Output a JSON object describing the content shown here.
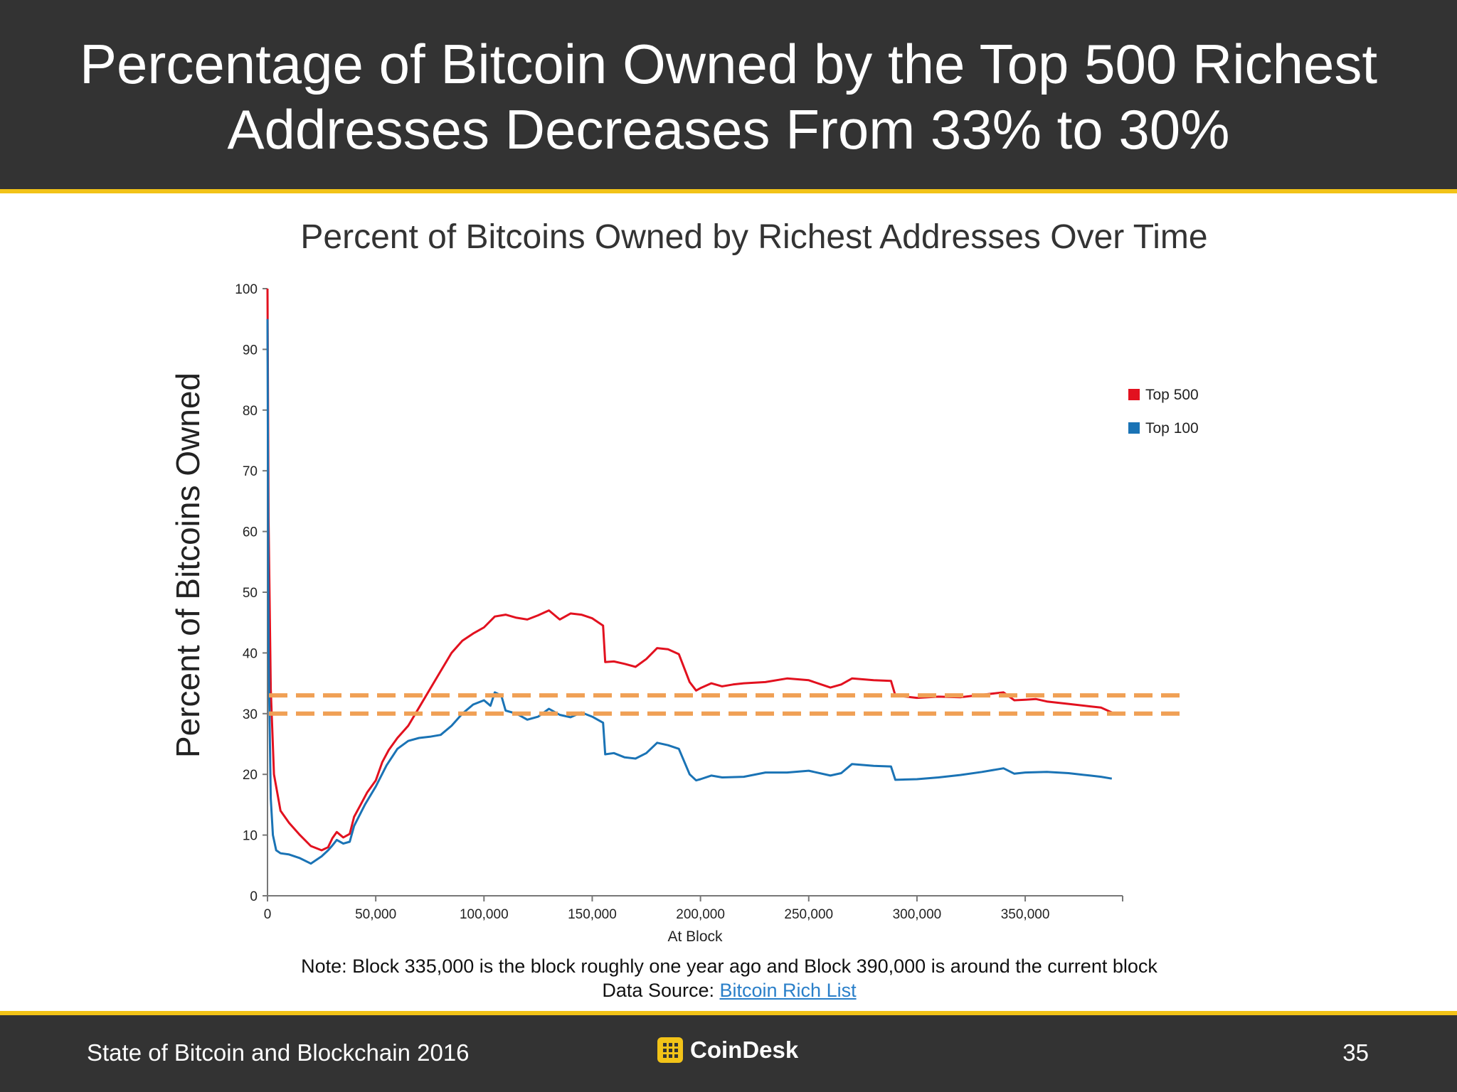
{
  "slide": {
    "title_line1": "Percentage of Bitcoin Owned by the Top 500 Richest",
    "title_line2": "Addresses Decreases From 33% to 30%",
    "note": "Note: Block 335,000 is the block roughly one year ago and Block 390,000 is around the current block",
    "source_label": "Data Source:",
    "source_link": "Bitcoin Rich List",
    "footer_left": "State of Bitcoin and Blockchain 2016",
    "footer_brand": "CoinDesk",
    "page_number": "35",
    "colors": {
      "header": "#333333",
      "accent": "#f2c318",
      "link": "#2a7fc9"
    }
  },
  "chart_data": {
    "type": "line",
    "title": "Percent of Bitcoins Owned by Richest Addresses Over Time",
    "xlabel": "At Block",
    "ylabel": "Percent of Bitcoins Owned",
    "xlim": [
      0,
      395000
    ],
    "ylim": [
      0,
      100
    ],
    "x_ticks": [
      0,
      50000,
      100000,
      150000,
      200000,
      250000,
      300000,
      350000
    ],
    "x_tick_labels": [
      "0",
      "50,000",
      "100,000",
      "150,000",
      "200,000",
      "250,000",
      "300,000",
      "350,000"
    ],
    "y_ticks": [
      0,
      10,
      20,
      30,
      40,
      50,
      60,
      70,
      80,
      90,
      100
    ],
    "grid": false,
    "legend_position": "top-right",
    "series": [
      {
        "name": "Top 500",
        "color": "#e2111f",
        "points": [
          [
            0,
            100
          ],
          [
            500,
            62
          ],
          [
            1500,
            34
          ],
          [
            3000,
            20
          ],
          [
            6000,
            14
          ],
          [
            10000,
            12
          ],
          [
            15000,
            10
          ],
          [
            20000,
            8.2
          ],
          [
            25000,
            7.5
          ],
          [
            28000,
            8
          ],
          [
            30000,
            9.5
          ],
          [
            32000,
            10.5
          ],
          [
            35000,
            9.6
          ],
          [
            38000,
            10.2
          ],
          [
            40000,
            13
          ],
          [
            43000,
            15
          ],
          [
            46000,
            17
          ],
          [
            50000,
            19
          ],
          [
            53000,
            22
          ],
          [
            56000,
            24
          ],
          [
            60000,
            26
          ],
          [
            65000,
            28
          ],
          [
            70000,
            31
          ],
          [
            75000,
            34
          ],
          [
            80000,
            37
          ],
          [
            85000,
            40
          ],
          [
            90000,
            42
          ],
          [
            95000,
            43.2
          ],
          [
            100000,
            44.2
          ],
          [
            105000,
            46
          ],
          [
            110000,
            46.3
          ],
          [
            115000,
            45.8
          ],
          [
            120000,
            45.5
          ],
          [
            125000,
            46.2
          ],
          [
            130000,
            47
          ],
          [
            135000,
            45.5
          ],
          [
            140000,
            46.5
          ],
          [
            145000,
            46.3
          ],
          [
            150000,
            45.7
          ],
          [
            155000,
            44.5
          ],
          [
            156000,
            38.5
          ],
          [
            160000,
            38.6
          ],
          [
            165000,
            38.2
          ],
          [
            170000,
            37.7
          ],
          [
            175000,
            39
          ],
          [
            180000,
            40.8
          ],
          [
            185000,
            40.6
          ],
          [
            190000,
            39.8
          ],
          [
            195000,
            35.2
          ],
          [
            198000,
            33.8
          ],
          [
            200000,
            34.2
          ],
          [
            205000,
            35
          ],
          [
            210000,
            34.5
          ],
          [
            215000,
            34.8
          ],
          [
            220000,
            35
          ],
          [
            230000,
            35.2
          ],
          [
            240000,
            35.8
          ],
          [
            250000,
            35.5
          ],
          [
            260000,
            34.3
          ],
          [
            265000,
            34.8
          ],
          [
            270000,
            35.8
          ],
          [
            280000,
            35.5
          ],
          [
            288000,
            35.4
          ],
          [
            290000,
            33
          ],
          [
            300000,
            32.6
          ],
          [
            310000,
            32.8
          ],
          [
            320000,
            32.7
          ],
          [
            330000,
            33.1
          ],
          [
            340000,
            33.5
          ],
          [
            345000,
            32.2
          ],
          [
            350000,
            32.3
          ],
          [
            355000,
            32.4
          ],
          [
            360000,
            32
          ],
          [
            370000,
            31.6
          ],
          [
            380000,
            31.2
          ],
          [
            385000,
            31
          ],
          [
            390000,
            30.2
          ]
        ]
      },
      {
        "name": "Top 100",
        "color": "#1a73b5",
        "points": [
          [
            0,
            95
          ],
          [
            500,
            40
          ],
          [
            1500,
            16
          ],
          [
            2500,
            10
          ],
          [
            4000,
            7.5
          ],
          [
            6000,
            7
          ],
          [
            10000,
            6.8
          ],
          [
            15000,
            6.2
          ],
          [
            20000,
            5.3
          ],
          [
            25000,
            6.5
          ],
          [
            28000,
            7.5
          ],
          [
            30000,
            8.3
          ],
          [
            32000,
            9.2
          ],
          [
            35000,
            8.6
          ],
          [
            38000,
            8.9
          ],
          [
            40000,
            11.5
          ],
          [
            45000,
            15
          ],
          [
            50000,
            18
          ],
          [
            55000,
            21.5
          ],
          [
            60000,
            24.2
          ],
          [
            65000,
            25.5
          ],
          [
            70000,
            26
          ],
          [
            75000,
            26.2
          ],
          [
            80000,
            26.5
          ],
          [
            85000,
            28
          ],
          [
            90000,
            30
          ],
          [
            95000,
            31.5
          ],
          [
            100000,
            32.2
          ],
          [
            103000,
            31.3
          ],
          [
            105000,
            33.5
          ],
          [
            108000,
            33
          ],
          [
            110000,
            30.5
          ],
          [
            115000,
            30
          ],
          [
            120000,
            29
          ],
          [
            125000,
            29.5
          ],
          [
            130000,
            30.8
          ],
          [
            135000,
            29.8
          ],
          [
            140000,
            29.4
          ],
          [
            145000,
            30.2
          ],
          [
            150000,
            29.5
          ],
          [
            155000,
            28.5
          ],
          [
            156000,
            23.3
          ],
          [
            160000,
            23.5
          ],
          [
            165000,
            22.8
          ],
          [
            170000,
            22.6
          ],
          [
            175000,
            23.5
          ],
          [
            180000,
            25.2
          ],
          [
            185000,
            24.8
          ],
          [
            190000,
            24.2
          ],
          [
            195000,
            20
          ],
          [
            198000,
            19
          ],
          [
            200000,
            19.2
          ],
          [
            205000,
            19.8
          ],
          [
            210000,
            19.5
          ],
          [
            220000,
            19.6
          ],
          [
            230000,
            20.3
          ],
          [
            240000,
            20.3
          ],
          [
            250000,
            20.6
          ],
          [
            260000,
            19.8
          ],
          [
            265000,
            20.2
          ],
          [
            270000,
            21.7
          ],
          [
            280000,
            21.4
          ],
          [
            288000,
            21.3
          ],
          [
            290000,
            19.1
          ],
          [
            300000,
            19.2
          ],
          [
            310000,
            19.5
          ],
          [
            320000,
            19.9
          ],
          [
            330000,
            20.4
          ],
          [
            340000,
            21
          ],
          [
            345000,
            20.1
          ],
          [
            350000,
            20.3
          ],
          [
            360000,
            20.4
          ],
          [
            370000,
            20.2
          ],
          [
            380000,
            19.8
          ],
          [
            385000,
            19.6
          ],
          [
            390000,
            19.3
          ]
        ]
      }
    ],
    "reference_lines": [
      {
        "y": 33,
        "color": "#f0a055",
        "style": "dashed"
      },
      {
        "y": 30,
        "color": "#f0a055",
        "style": "dashed"
      }
    ]
  }
}
